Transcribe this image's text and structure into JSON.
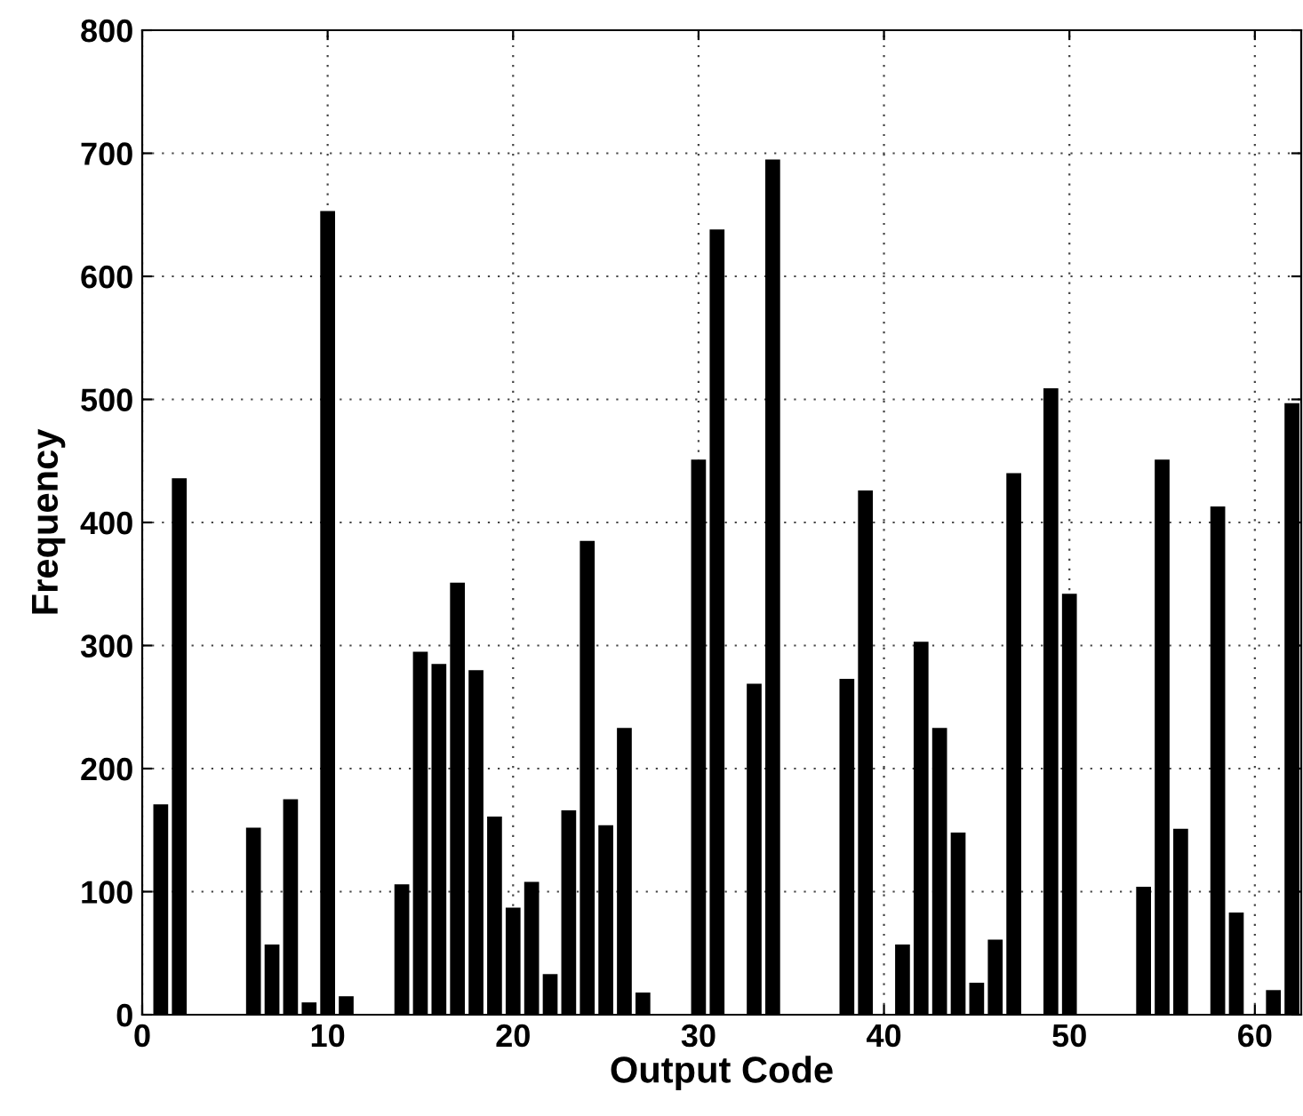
{
  "chart_data": {
    "type": "bar",
    "xlabel": "Output Code",
    "ylabel": "Frequency",
    "x": [
      1,
      2,
      3,
      4,
      5,
      6,
      7,
      8,
      9,
      10,
      11,
      12,
      13,
      14,
      15,
      16,
      17,
      18,
      19,
      20,
      21,
      22,
      23,
      24,
      25,
      26,
      27,
      28,
      29,
      30,
      31,
      32,
      33,
      34,
      35,
      36,
      37,
      38,
      39,
      40,
      41,
      42,
      43,
      44,
      45,
      46,
      47,
      48,
      49,
      50,
      51,
      52,
      53,
      54,
      55,
      56,
      57,
      58,
      59,
      60,
      61,
      62
    ],
    "values": [
      171,
      436,
      0,
      0,
      0,
      152,
      57,
      175,
      10,
      653,
      15,
      0,
      0,
      106,
      295,
      285,
      351,
      280,
      161,
      87,
      108,
      33,
      166,
      385,
      154,
      233,
      18,
      0,
      0,
      451,
      638,
      0,
      269,
      695,
      0,
      0,
      0,
      273,
      426,
      0,
      57,
      303,
      233,
      148,
      26,
      61,
      440,
      0,
      509,
      342,
      0,
      0,
      0,
      104,
      451,
      151,
      0,
      413,
      83,
      0,
      20,
      497
    ],
    "color": "#000000",
    "xlim": [
      0,
      62.5
    ],
    "ylim": [
      0,
      800
    ],
    "xticks": [
      0,
      10,
      20,
      30,
      40,
      50,
      60
    ],
    "yticks": [
      0,
      100,
      200,
      300,
      400,
      500,
      600,
      700,
      800
    ],
    "grid": true
  }
}
